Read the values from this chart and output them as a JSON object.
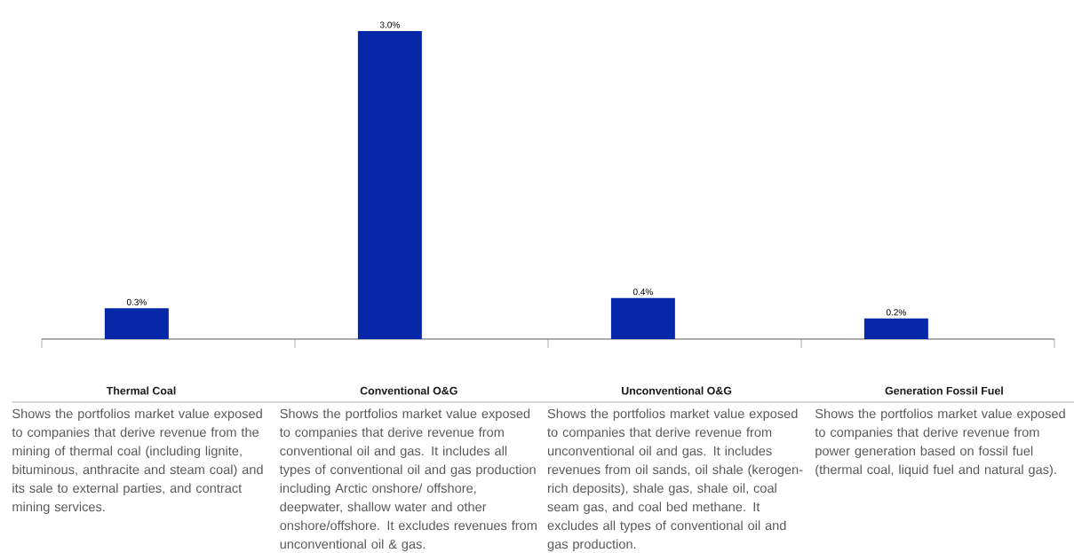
{
  "chart_data": {
    "type": "bar",
    "categories": [
      "Thermal Coal",
      "Conventional O&G",
      "Unconventional O&G",
      "Generation Fossil Fuel"
    ],
    "values": [
      0.3,
      3.0,
      0.4,
      0.2
    ],
    "color": "#0527a8",
    "value_labels": [
      "0.3%",
      "3.0%",
      "0.4%",
      "0.2%"
    ],
    "annotations": [
      "Shows the portfolios market value exposed to companies that derive revenue from the mining of thermal coal (including lignite, bituminous, anthracite and steam coal) and its sale to external parties, and contract mining services.",
      "Shows the portfolios market value exposed to companies that derive revenue from conventional oil and gas. It includes all types of conventional oil and gas production including Arctic onshore/ offshore, deepwater, shallow water and other onshore/offshore. It excludes revenues from unconventional oil & gas.",
      "Shows the portfolios market value exposed to companies that derive revenue from unconventional oil and gas. It includes revenues from oil sands, oil shale (kerogen-rich deposits), shale gas, shale oil, coal seam gas, and coal bed methane. It excludes all types of conventional oil and gas production.",
      "Shows the portfolios market value exposed to companies that derive revenue from power generation based on fossil fuel (thermal coal, liquid fuel and natural gas)."
    ]
  }
}
